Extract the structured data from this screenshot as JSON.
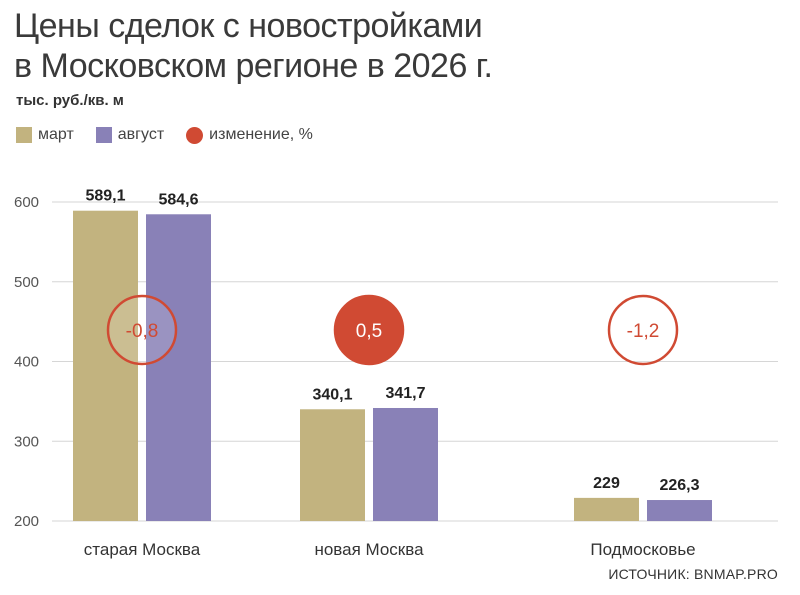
{
  "title_line1": "Цены сделок с новостройками",
  "title_line2": "в Московском регионе в 2026 г.",
  "subtitle": "тыс. руб./кв. м",
  "source": "ИСТОЧНИК: BNMAP.PRO",
  "colors": {
    "march": "#c2b37f",
    "august": "#8981b7",
    "change": "#d04a33",
    "grid": "#d6d6d6",
    "axis_text": "#555555"
  },
  "legend": [
    {
      "label": "март",
      "color": "#c2b37f",
      "shape": "square"
    },
    {
      "label": "август",
      "color": "#8981b7",
      "shape": "square"
    },
    {
      "label": "изменение, %",
      "color": "#d04a33",
      "shape": "circle"
    }
  ],
  "chart_data": {
    "type": "bar",
    "categories": [
      "старая Москва",
      "новая Москва",
      "Подмосковье"
    ],
    "series": [
      {
        "name": "март",
        "values": [
          589.1,
          340.1,
          229
        ],
        "labels": [
          "589,1",
          "340,1",
          "229"
        ]
      },
      {
        "name": "август",
        "values": [
          584.6,
          341.7,
          226.3
        ],
        "labels": [
          "584,6",
          "341,7",
          "226,3"
        ]
      }
    ],
    "change": {
      "name": "изменение, %",
      "values": [
        -0.8,
        0.5,
        -1.2
      ],
      "labels": [
        "-0,8",
        "0,5",
        "-1,2"
      ],
      "filled": [
        false,
        true,
        false
      ]
    },
    "ylim": [
      200,
      600
    ],
    "yticks": [
      200,
      300,
      400,
      500,
      600
    ],
    "ytick_labels": [
      "200",
      "300",
      "400",
      "500",
      "600"
    ],
    "grid": true,
    "legend_position": "top-left"
  }
}
